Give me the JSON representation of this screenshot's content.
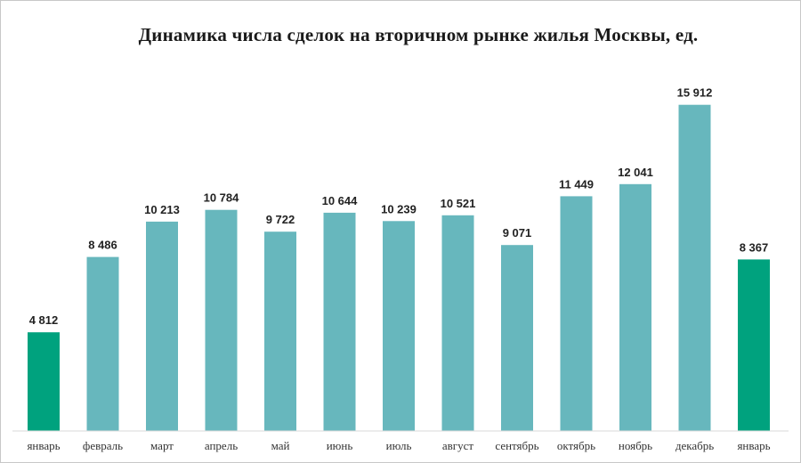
{
  "chart_data": {
    "type": "bar",
    "title": "Динамика числа сделок на вторичном рынке жилья Москвы, ед.",
    "categories": [
      "январь",
      "февраль",
      "март",
      "апрель",
      "май",
      "июнь",
      "июль",
      "август",
      "сентябрь",
      "октябрь",
      "ноябрь",
      "декабрь",
      "январь"
    ],
    "values": [
      4812,
      8486,
      10213,
      10784,
      9722,
      10644,
      10239,
      10521,
      9071,
      11449,
      12041,
      15912,
      8367
    ],
    "value_labels": [
      "4 812",
      "8 486",
      "10 213",
      "10 784",
      "9 722",
      "10 644",
      "10 239",
      "10 521",
      "9 071",
      "11 449",
      "12 041",
      "15 912",
      "8 367"
    ],
    "highlight_indices": [
      0,
      12
    ],
    "ylim": [
      0,
      17200
    ],
    "grid": false,
    "colors": {
      "bar": "#67b7bd",
      "highlight": "#00a27e",
      "axis": "#d9d9d9"
    }
  }
}
